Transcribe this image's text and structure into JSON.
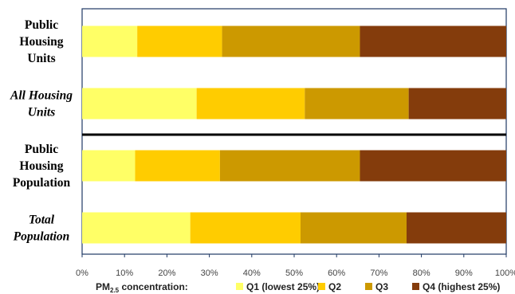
{
  "chart_data": {
    "type": "bar",
    "orientation": "horizontal",
    "stacked": true,
    "categories": [
      {
        "label_lines": [
          "Public",
          "Housing",
          "Units"
        ],
        "italic": false
      },
      {
        "label_lines": [
          "All Housing",
          "Units"
        ],
        "italic": true
      },
      {
        "label_lines": [
          "Public",
          "Housing",
          "Population"
        ],
        "italic": false
      },
      {
        "label_lines": [
          "Total",
          "Population"
        ],
        "italic": true
      }
    ],
    "series": [
      {
        "name": "Q1 (lowest 25%)",
        "color": "#FFFF66",
        "values": [
          13,
          27,
          12.5,
          25.5
        ]
      },
      {
        "name": "Q2",
        "color": "#FFCC00",
        "values": [
          20,
          25.5,
          20,
          26
        ]
      },
      {
        "name": "Q3",
        "color": "#CC9900",
        "values": [
          32.5,
          24.5,
          33,
          25
        ]
      },
      {
        "name": "Q4 (highest 25%)",
        "color": "#843C0C",
        "values": [
          34.5,
          23,
          34.5,
          23.5
        ]
      }
    ],
    "xlim": [
      0,
      100
    ],
    "xticks": [
      "0%",
      "10%",
      "20%",
      "30%",
      "40%",
      "50%",
      "60%",
      "70%",
      "80%",
      "90%",
      "100%"
    ],
    "grid": false,
    "separator_after_category": 1,
    "legend": {
      "position": "bottom",
      "title_main": "PM",
      "title_sub": "2.5",
      "title_rest": " concentration:"
    }
  }
}
